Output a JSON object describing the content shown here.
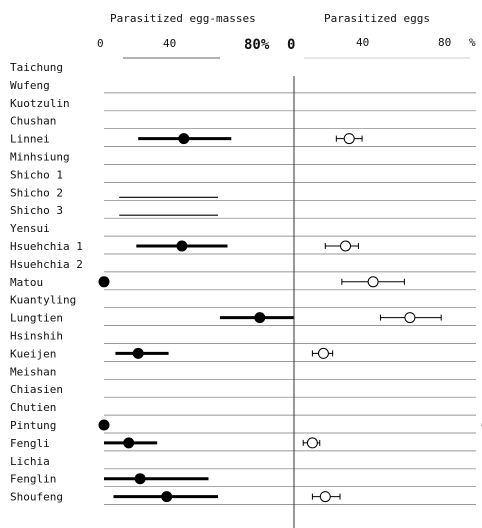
{
  "chart_data": [
    {
      "type": "scatter",
      "title": "Parasitized egg-masses",
      "xlim": [
        0,
        100
      ],
      "x_ticks": [
        "0",
        "40",
        "80%"
      ],
      "error_bars": "horizontal",
      "marker": "filled-circle",
      "categories": [
        "Taichung",
        "Wufeng",
        "Kuotzulin",
        "Chushan",
        "Linnei",
        "Minhsiung",
        "Shicho 1",
        "Shicho 2",
        "Shicho 3",
        "Yensui",
        "Hsuehchia 1",
        "Hsuehchia 2",
        "Matou",
        "Kuantyling",
        "Lungtien",
        "Hsinshih",
        "Kueijen",
        "Meishan",
        "Chiasien",
        "Chutien",
        "Pintung",
        "Fengli",
        "Lichia",
        "Fenglin",
        "Shoufeng"
      ],
      "points": [
        {
          "site": "Linnei",
          "x": 42,
          "lo": 18,
          "hi": 67
        },
        {
          "site": "Hsuehchia 1",
          "x": 41,
          "lo": 17,
          "hi": 65
        },
        {
          "site": "Matou",
          "x": 0,
          "lo": 0,
          "hi": 0
        },
        {
          "site": "Lungtien",
          "x": 82,
          "lo": 61,
          "hi": 100
        },
        {
          "site": "Kueijen",
          "x": 18,
          "lo": 6,
          "hi": 34
        },
        {
          "site": "Pintung",
          "x": 0,
          "lo": 0,
          "hi": 0
        },
        {
          "site": "Fengli",
          "x": 13,
          "lo": 0,
          "hi": 28
        },
        {
          "site": "Fenglin",
          "x": 19,
          "lo": 0,
          "hi": 55
        },
        {
          "site": "Shoufeng",
          "x": 33,
          "lo": 5,
          "hi": 60
        }
      ],
      "bare_bars": [
        {
          "site": "Shicho 2",
          "lo": 8,
          "hi": 60
        },
        {
          "site": "Shicho 3",
          "lo": 8,
          "hi": 60
        }
      ]
    },
    {
      "type": "scatter",
      "title": "Parasitized eggs",
      "xlim": [
        0,
        100
      ],
      "x_ticks": [
        "40",
        "80",
        "%"
      ],
      "error_bars": "horizontal",
      "marker": "open-circle",
      "categories": [
        "Taichung",
        "Wufeng",
        "Kuotzulin",
        "Chushan",
        "Linnei",
        "Minhsiung",
        "Shicho 1",
        "Shicho 2",
        "Shicho 3",
        "Yensui",
        "Hsuehchia 1",
        "Hsuehchia 2",
        "Matou",
        "Kuantyling",
        "Lungtien",
        "Hsinshih",
        "Kueijen",
        "Meishan",
        "Chiasien",
        "Chutien",
        "Pintung",
        "Fengli",
        "Lichia",
        "Fenglin",
        "Shoufeng"
      ],
      "points": [
        {
          "site": "Linnei",
          "x": 30,
          "lo": 23,
          "hi": 37
        },
        {
          "site": "Hsuehchia 1",
          "x": 28,
          "lo": 17,
          "hi": 35
        },
        {
          "site": "Matou",
          "x": 43,
          "lo": 26,
          "hi": 60
        },
        {
          "site": "Lungtien",
          "x": 63,
          "lo": 47,
          "hi": 80
        },
        {
          "site": "Kueijen",
          "x": 16,
          "lo": 10,
          "hi": 21
        },
        {
          "site": "Pintung",
          "x": 105,
          "lo": 105,
          "hi": 105
        },
        {
          "site": "Fengli",
          "x": 10,
          "lo": 5,
          "hi": 14
        },
        {
          "site": "Shoufeng",
          "x": 17,
          "lo": 10,
          "hi": 25
        }
      ]
    }
  ]
}
